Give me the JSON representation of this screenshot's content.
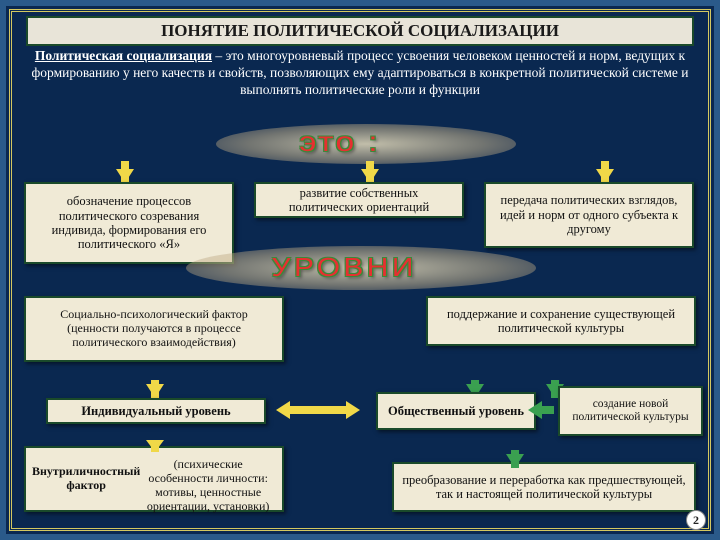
{
  "colors": {
    "slide_bg": "#0a2850",
    "header_bg": "#e8e4d8",
    "box_bg": "#f0ead6",
    "box_border": "#1a4a2a",
    "arrow_yellow": "#f0d848",
    "arrow_green": "#3aa050",
    "text_white": "#ffffff",
    "eto_red": "#e63030",
    "eto_outline": "#3a8a3a"
  },
  "header": {
    "title": "ПОНЯТИЕ ПОЛИТИЧЕСКОЙ СОЦИАЛИЗАЦИИ"
  },
  "definition": {
    "term": "Политическая социализация",
    "text": " – это многоуровневый процесс усвоения человеком ценностей и норм, ведущих к формированию у него качеств и свойств, позволяющих ему адаптироваться в конкретной политической системе и выполнять политические роли и функции"
  },
  "labels": {
    "eto": "это :",
    "levels": "УРОВНИ"
  },
  "eto_boxes": {
    "b1": "обозначение процессов политического созревания индивида, формирования его политического «Я»",
    "b2": "развитие собственных политических ориентаций",
    "b3": "передача политических взглядов, идей и норм от одного субъекта к другому"
  },
  "level_boxes": {
    "factor_social": "Социально-психологический фактор\n(ценности получаются в процессе политического взаимодействия)",
    "maintain": "поддержание и сохранение существующей политической культуры",
    "level_ind": "Индивидуальный уровень",
    "level_soc": "Общественный уровень",
    "create": "создание новой политической культуры",
    "factor_intra": "Внутриличностный фактор\n(психические особенности личности: мотивы, ценностные ориентации, установки)",
    "transform": "преобразование и переработка как предшествующей, так и настоящей политической культуры"
  },
  "page_number": "2"
}
